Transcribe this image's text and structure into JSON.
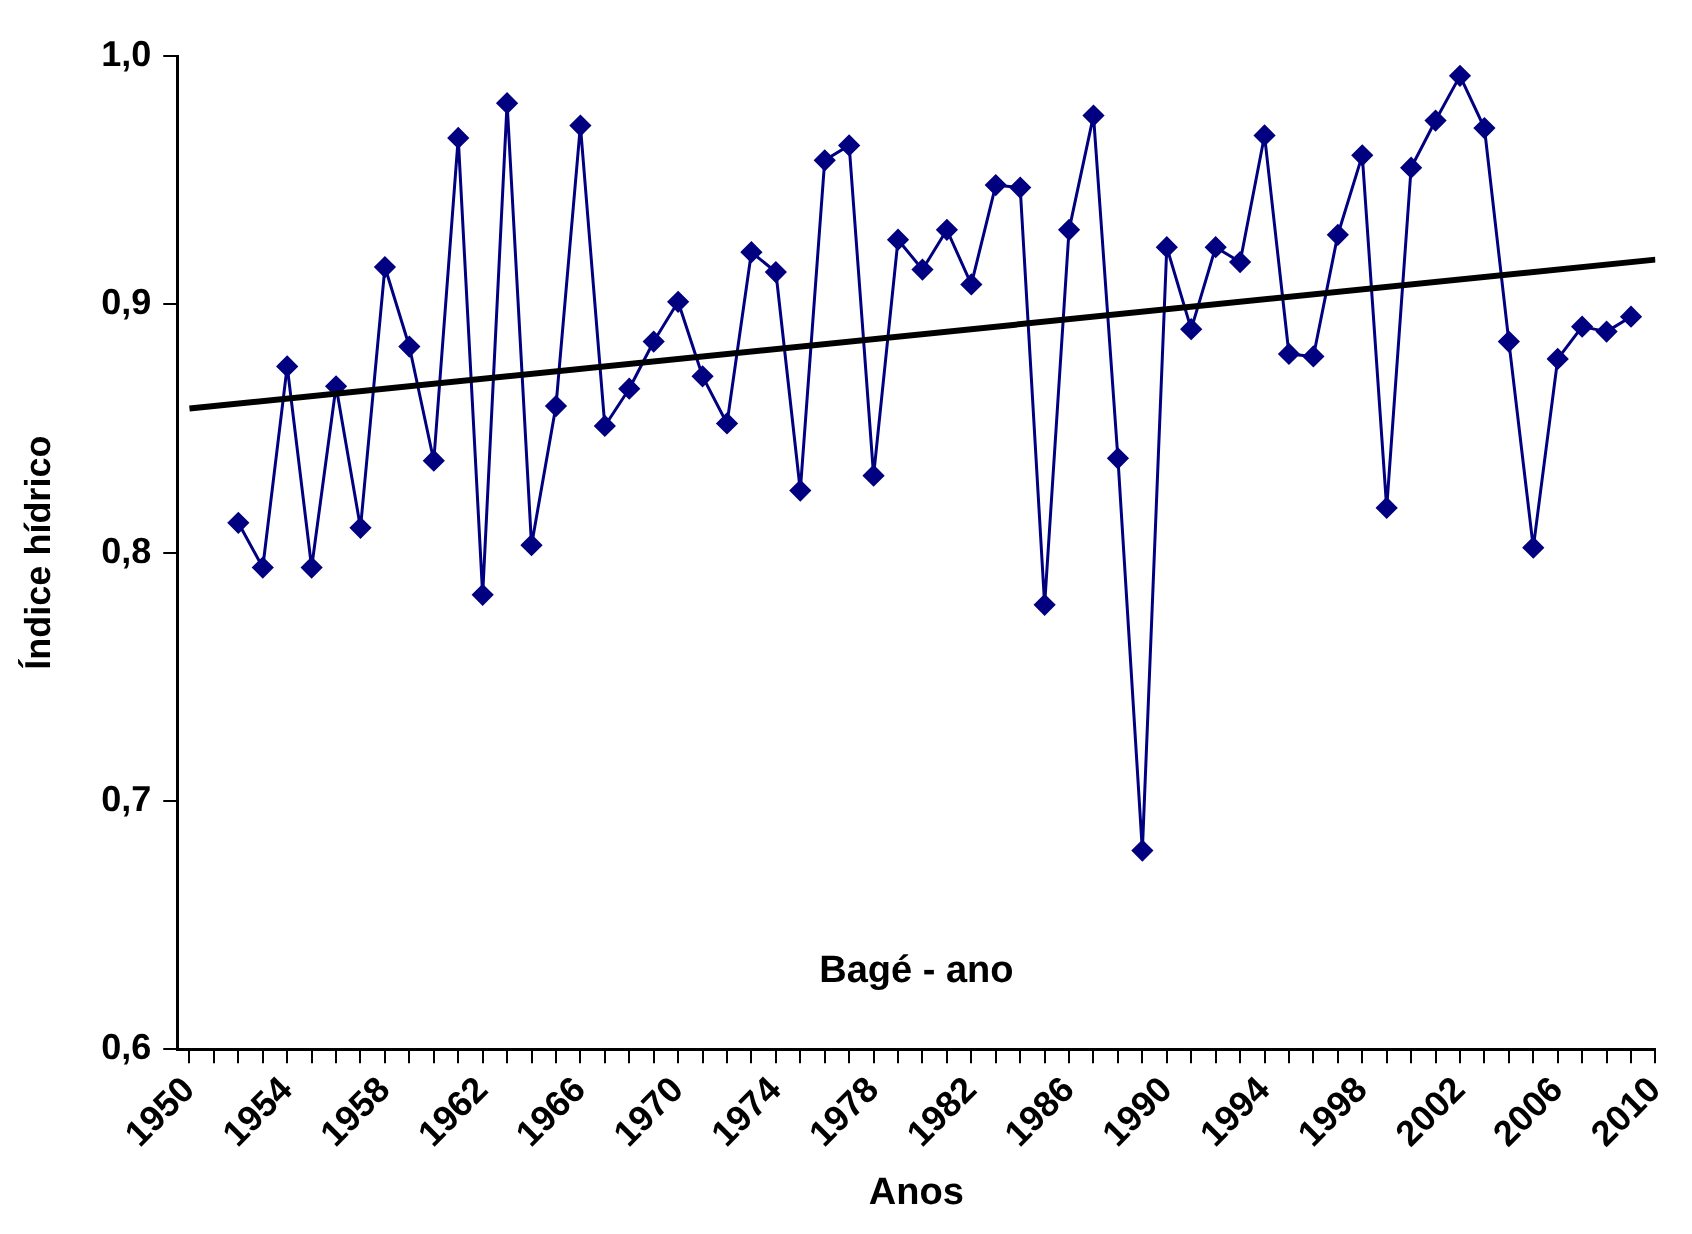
{
  "chart_data": {
    "type": "line",
    "title": "Bagé - ano",
    "xlabel": "Anos",
    "ylabel": "Índice hídrico",
    "xlim": [
      1949.5,
      2010
    ],
    "xticks": [
      1950,
      {
        "value": 1951,
        "label": null
      },
      {
        "value": 1952,
        "label": null
      },
      {
        "value": 1953,
        "label": null
      },
      1954,
      {
        "value": 1955,
        "label": null
      },
      {
        "value": 1956,
        "label": null
      },
      {
        "value": 1957,
        "label": null
      },
      1958,
      {
        "value": 1959,
        "label": null
      },
      {
        "value": 1960,
        "label": null
      },
      {
        "value": 1961,
        "label": null
      },
      1962,
      {
        "value": 1963,
        "label": null
      },
      {
        "value": 1964,
        "label": null
      },
      {
        "value": 1965,
        "label": null
      },
      1966,
      {
        "value": 1967,
        "label": null
      },
      {
        "value": 1968,
        "label": null
      },
      {
        "value": 1969,
        "label": null
      },
      1970,
      {
        "value": 1971,
        "label": null
      },
      {
        "value": 1972,
        "label": null
      },
      {
        "value": 1973,
        "label": null
      },
      1974,
      {
        "value": 1975,
        "label": null
      },
      {
        "value": 1976,
        "label": null
      },
      {
        "value": 1977,
        "label": null
      },
      1978,
      {
        "value": 1979,
        "label": null
      },
      {
        "value": 1980,
        "label": null
      },
      {
        "value": 1981,
        "label": null
      },
      1982,
      {
        "value": 1983,
        "label": null
      },
      {
        "value": 1984,
        "label": null
      },
      {
        "value": 1985,
        "label": null
      },
      1986,
      {
        "value": 1987,
        "label": null
      },
      {
        "value": 1988,
        "label": null
      },
      {
        "value": 1989,
        "label": null
      },
      1990,
      {
        "value": 1991,
        "label": null
      },
      {
        "value": 1992,
        "label": null
      },
      {
        "value": 1993,
        "label": null
      },
      1994,
      {
        "value": 1995,
        "label": null
      },
      {
        "value": 1996,
        "label": null
      },
      {
        "value": 1997,
        "label": null
      },
      1998,
      {
        "value": 1999,
        "label": null
      },
      {
        "value": 2000,
        "label": null
      },
      {
        "value": 2001,
        "label": null
      },
      2002,
      {
        "value": 2003,
        "label": null
      },
      {
        "value": 2004,
        "label": null
      },
      {
        "value": 2005,
        "label": null
      },
      2006,
      {
        "value": 2007,
        "label": null
      },
      {
        "value": 2008,
        "label": null
      },
      {
        "value": 2009,
        "label": null
      },
      2010
    ],
    "ylim": [
      0.6,
      1.0
    ],
    "yticks": [
      {
        "value": 0.6,
        "label": "0,6"
      },
      {
        "value": 0.7,
        "label": "0,7"
      },
      {
        "value": 0.8,
        "label": "0,8"
      },
      {
        "value": 0.9,
        "label": "0,9"
      },
      {
        "value": 1.0,
        "label": "1,0"
      }
    ],
    "grid": false,
    "legend": false,
    "x": [
      1952,
      1953,
      1954,
      1955,
      1956,
      1957,
      1958,
      1959,
      1960,
      1961,
      1962,
      1963,
      1964,
      1965,
      1966,
      1967,
      1968,
      1969,
      1970,
      1971,
      1972,
      1973,
      1974,
      1975,
      1976,
      1977,
      1978,
      1979,
      1980,
      1981,
      1982,
      1983,
      1984,
      1985,
      1986,
      1987,
      1988,
      1989,
      1990,
      1991,
      1992,
      1993,
      1994,
      1995,
      1996,
      1997,
      1998,
      1999,
      2000,
      2001,
      2002,
      2003,
      2004,
      2005,
      2006,
      2007,
      2008,
      2009
    ],
    "series": [
      {
        "color": "#000080",
        "marker": "diamond",
        "values": [
          0.812,
          0.794,
          0.875,
          0.794,
          0.867,
          0.81,
          0.915,
          0.883,
          0.837,
          0.967,
          0.783,
          0.981,
          0.803,
          0.859,
          0.972,
          0.851,
          0.866,
          0.885,
          0.901,
          0.871,
          0.852,
          0.921,
          0.913,
          0.825,
          0.958,
          0.964,
          0.831,
          0.926,
          0.914,
          0.93,
          0.908,
          0.948,
          0.947,
          0.779,
          0.93,
          0.976,
          0.838,
          0.68,
          0.923,
          0.89,
          0.923,
          0.917,
          0.968,
          0.88,
          0.879,
          0.928,
          0.96,
          0.818,
          0.955,
          0.974,
          0.992,
          0.971,
          0.885,
          0.802,
          0.878,
          0.891,
          0.889,
          0.895
        ]
      },
      {
        "type": "line",
        "color": "#000000",
        "marker": "none",
        "x": [
          1950,
          2010
        ],
        "values": [
          0.858,
          0.918
        ]
      }
    ]
  }
}
